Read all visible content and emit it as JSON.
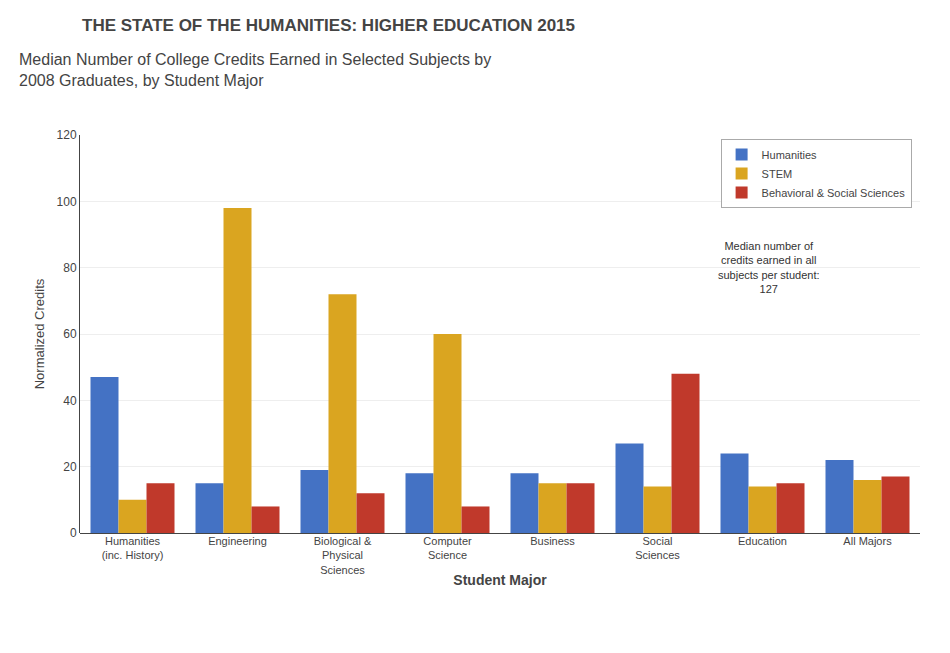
{
  "chart_data": {
    "type": "bar",
    "subtitle": "THE STATE OF THE HUMANITIES: HIGHER EDUCATION 2015",
    "title": "Median Number of College Credits Earned in Selected Subjects by\n2008 Graduates, by Student Major",
    "categories": [
      "Humanities\n(inc. History)",
      "Engineering",
      "Biological &\nPhysical\nSciences",
      "Computer\nScience",
      "Business",
      "Social\nSciences",
      "Education",
      "All Majors"
    ],
    "series": [
      {
        "name": "Humanities",
        "color": "#4472C4",
        "values": [
          47,
          15,
          19,
          18,
          18,
          27,
          24,
          22
        ]
      },
      {
        "name": "STEM",
        "color": "#DAA520",
        "values": [
          10,
          98,
          72,
          60,
          15,
          14,
          14,
          16
        ]
      },
      {
        "name": "Behavioral & Social Sciences",
        "color": "#C0392B",
        "values": [
          15,
          8,
          12,
          8,
          15,
          48,
          15,
          17
        ]
      }
    ],
    "xlabel": "Student Major",
    "ylabel": "Normalized Credits",
    "ylim": [
      0,
      120
    ],
    "yticks": [
      0,
      20,
      40,
      60,
      80,
      100,
      120
    ],
    "grid": true,
    "legend": "upper right",
    "annotations": [
      "Median number of\ncredits earned in all\nsubjects per student:\n127"
    ]
  }
}
